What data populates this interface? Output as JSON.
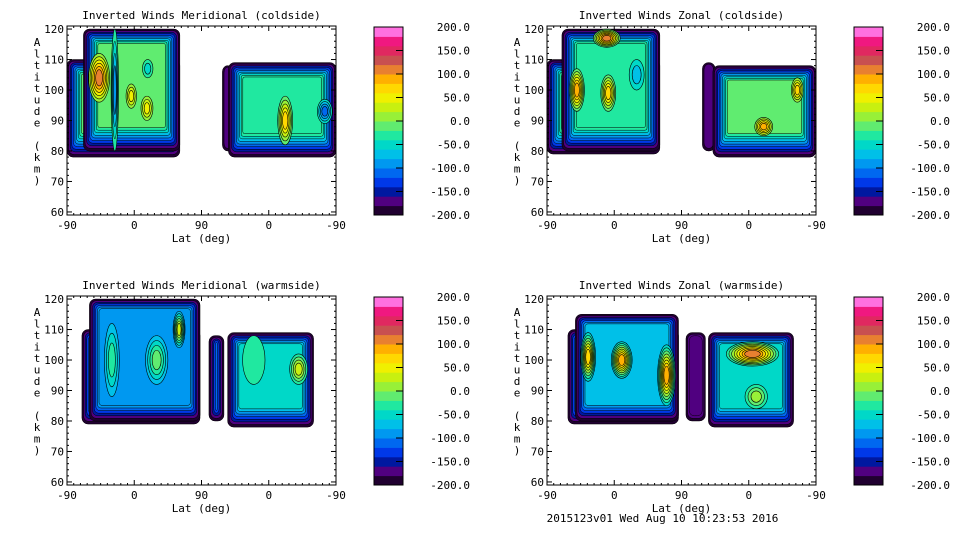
{
  "footer": "2015123v01 Wed Aug 10 10:23:53 2016",
  "chart_data": [
    {
      "type": "heatmap",
      "title": "Inverted Winds Meridional (coldside)",
      "xlabel": "Lat (deg)",
      "ylabel": "Altitude (km)",
      "xticks": [
        "-90",
        "0",
        "90",
        "0",
        "-90"
      ],
      "yticks": [
        "60",
        "70",
        "80",
        "90",
        "100",
        "110",
        "120"
      ],
      "ylim": [
        59,
        121
      ],
      "xlim": [
        0,
        360
      ],
      "colorbar": {
        "range": [
          -200,
          200
        ],
        "levels": 20,
        "labels": [
          "200.0",
          "150.0",
          "100.0",
          "50.0",
          "0.0",
          "-50.0",
          "-100.0",
          "-150.0",
          "-200.0"
        ]
      },
      "regions": [
        {
          "t": [
            0,
            151
          ],
          "alt": [
            78,
            110
          ],
          "base": -20
        },
        {
          "t": [
            22,
            151
          ],
          "alt": [
            80,
            120
          ],
          "base": -20
        },
        {
          "t": [
            208,
            222
          ],
          "alt": [
            80,
            108
          ],
          "base": -180
        },
        {
          "t": [
            216,
            360
          ],
          "alt": [
            78,
            109
          ],
          "base": -30
        }
      ],
      "features": [
        {
          "t": 43,
          "alt": 104,
          "value": 100,
          "rt": 14,
          "ralt": 8
        },
        {
          "t": 64,
          "alt": 100,
          "value": -100,
          "rt": 5,
          "ralt": 20
        },
        {
          "t": 86,
          "alt": 98,
          "value": 40,
          "rt": 7,
          "ralt": 4
        },
        {
          "t": 107,
          "alt": 94,
          "value": 30,
          "rt": 8,
          "ralt": 4
        },
        {
          "t": 108,
          "alt": 107,
          "value": -60,
          "rt": 7,
          "ralt": 3
        },
        {
          "t": 292,
          "alt": 90,
          "value": 70,
          "rt": 10,
          "ralt": 8
        },
        {
          "t": 345,
          "alt": 93,
          "value": -100,
          "rt": 10,
          "ralt": 4
        }
      ]
    },
    {
      "type": "heatmap",
      "title": "Inverted Winds Zonal (coldside)",
      "xlabel": "Lat (deg)",
      "ylabel": "Altitude (km)",
      "xticks": [
        "-90",
        "0",
        "90",
        "0",
        "-90"
      ],
      "yticks": [
        "60",
        "70",
        "80",
        "90",
        "100",
        "110",
        "120"
      ],
      "ylim": [
        59,
        121
      ],
      "xlim": [
        0,
        360
      ],
      "colorbar": {
        "range": [
          -200,
          200
        ],
        "levels": 20,
        "labels": [
          "200.0",
          "150.0",
          "100.0",
          "50.0",
          "0.0",
          "-50.0",
          "-100.0",
          "-150.0",
          "-200.0"
        ]
      },
      "regions": [
        {
          "t": [
            0,
            151
          ],
          "alt": [
            79,
            110
          ],
          "base": -30
        },
        {
          "t": [
            20,
            151
          ],
          "alt": [
            80,
            120
          ],
          "base": -30
        },
        {
          "t": [
            208,
            225
          ],
          "alt": [
            80,
            109
          ],
          "base": -180
        },
        {
          "t": [
            222,
            360
          ],
          "alt": [
            78,
            108
          ],
          "base": -20
        }
      ],
      "features": [
        {
          "t": 40,
          "alt": 100,
          "value": 90,
          "rt": 10,
          "ralt": 7
        },
        {
          "t": 82,
          "alt": 99,
          "value": 60,
          "rt": 10,
          "ralt": 6
        },
        {
          "t": 80,
          "alt": 117,
          "value": 100,
          "rt": 18,
          "ralt": 3
        },
        {
          "t": 120,
          "alt": 105,
          "value": -60,
          "rt": 10,
          "ralt": 5
        },
        {
          "t": 290,
          "alt": 88,
          "value": 70,
          "rt": 12,
          "ralt": 3
        },
        {
          "t": 335,
          "alt": 100,
          "value": 50,
          "rt": 8,
          "ralt": 4
        }
      ]
    },
    {
      "type": "heatmap",
      "title": "Inverted Winds Meridional (warmside)",
      "xlabel": "Lat (deg)",
      "ylabel": "Altitude (km)",
      "xticks": [
        "-90",
        "0",
        "90",
        "0",
        "-90"
      ],
      "yticks": [
        "60",
        "70",
        "80",
        "90",
        "100",
        "110",
        "120"
      ],
      "ylim": [
        59,
        121
      ],
      "xlim": [
        0,
        360
      ],
      "colorbar": {
        "range": [
          -200,
          200
        ],
        "levels": 20,
        "labels": [
          "200.0",
          "150.0",
          "100.0",
          "50.0",
          "0.0",
          "-50.0",
          "-100.0",
          "-150.0",
          "-200.0"
        ]
      },
      "regions": [
        {
          "t": [
            20,
            178
          ],
          "alt": [
            79,
            110
          ],
          "base": -90
        },
        {
          "t": [
            30,
            178
          ],
          "alt": [
            80,
            120
          ],
          "base": -90
        },
        {
          "t": [
            190,
            210
          ],
          "alt": [
            80,
            108
          ],
          "base": -120
        },
        {
          "t": [
            215,
            330
          ],
          "alt": [
            78,
            109
          ],
          "base": -60
        }
      ],
      "features": [
        {
          "t": 60,
          "alt": 100,
          "value": -30,
          "rt": 10,
          "ralt": 12
        },
        {
          "t": 120,
          "alt": 100,
          "value": -20,
          "rt": 15,
          "ralt": 8
        },
        {
          "t": 150,
          "alt": 110,
          "value": 30,
          "rt": 8,
          "ralt": 6
        },
        {
          "t": 310,
          "alt": 97,
          "value": 20,
          "rt": 12,
          "ralt": 5
        },
        {
          "t": 250,
          "alt": 100,
          "value": -40,
          "rt": 15,
          "ralt": 8
        }
      ]
    },
    {
      "type": "heatmap",
      "title": "Inverted Winds Zonal (warmside)",
      "xlabel": "Lat (deg)",
      "ylabel": "Altitude (km)",
      "xticks": [
        "-90",
        "0",
        "90",
        "0",
        "-90"
      ],
      "yticks": [
        "60",
        "70",
        "80",
        "90",
        "100",
        "110",
        "120"
      ],
      "ylim": [
        59,
        121
      ],
      "xlim": [
        0,
        360
      ],
      "colorbar": {
        "range": [
          -200,
          200
        ],
        "levels": 20,
        "labels": [
          "200.0",
          "150.0",
          "100.0",
          "50.0",
          "0.0",
          "-50.0",
          "-100.0",
          "-150.0",
          "-200.0"
        ]
      },
      "regions": [
        {
          "t": [
            28,
            176
          ],
          "alt": [
            79,
            110
          ],
          "base": -80
        },
        {
          "t": [
            38,
            176
          ],
          "alt": [
            80,
            115
          ],
          "base": -80
        },
        {
          "t": [
            186,
            212
          ],
          "alt": [
            80,
            109
          ],
          "base": -170
        },
        {
          "t": [
            216,
            330
          ],
          "alt": [
            78,
            109
          ],
          "base": -60
        }
      ],
      "features": [
        {
          "t": 55,
          "alt": 101,
          "value": 60,
          "rt": 10,
          "ralt": 8
        },
        {
          "t": 100,
          "alt": 100,
          "value": 70,
          "rt": 14,
          "ralt": 6
        },
        {
          "t": 160,
          "alt": 95,
          "value": 70,
          "rt": 12,
          "ralt": 10
        },
        {
          "t": 275,
          "alt": 102,
          "value": 90,
          "rt": 35,
          "ralt": 4
        },
        {
          "t": 280,
          "alt": 88,
          "value": 0,
          "rt": 15,
          "ralt": 4
        }
      ]
    }
  ]
}
